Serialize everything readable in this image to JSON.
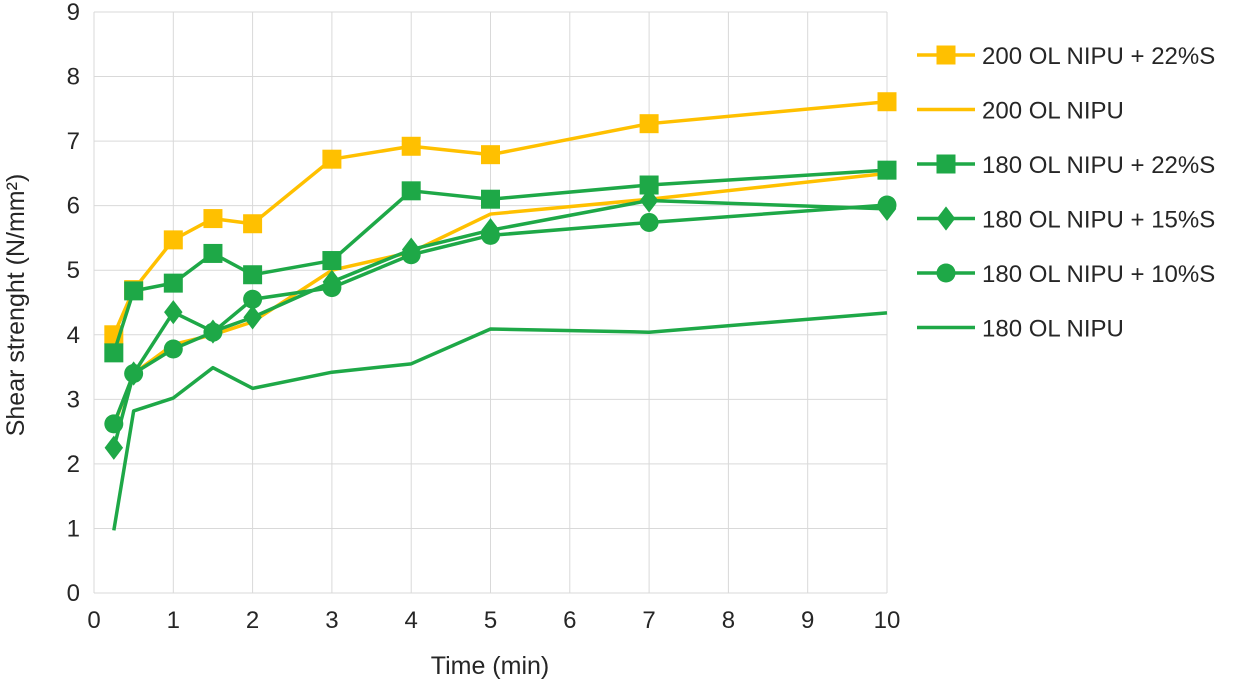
{
  "chart_data": {
    "type": "line",
    "title": "",
    "xlabel": "Time (min)",
    "ylabel": "Shear strenght (N/mm²)",
    "xlim": [
      0,
      10
    ],
    "ylim": [
      0,
      9
    ],
    "xticks": [
      "0",
      "1",
      "2",
      "3",
      "4",
      "5",
      "6",
      "7",
      "8",
      "9",
      "10"
    ],
    "yticks": [
      "0",
      "1",
      "2",
      "3",
      "4",
      "5",
      "6",
      "7",
      "8",
      "9"
    ],
    "grid": "vertical and horizontal",
    "legend_position": "right",
    "x": [
      0.25,
      0.5,
      1,
      1.5,
      2,
      3,
      4,
      5,
      7,
      10
    ],
    "series": [
      {
        "name": "200 OL NIPU + 22%S",
        "color": "#FFC000",
        "marker": "square",
        "values": [
          4.0,
          4.7,
          5.47,
          5.8,
          5.72,
          6.72,
          6.92,
          6.79,
          7.27,
          7.61
        ]
      },
      {
        "name": "200 OL NIPU",
        "color": "#FFC000",
        "marker": "none",
        "values": [
          2.6,
          3.4,
          3.85,
          4.0,
          4.2,
          5.0,
          5.28,
          5.87,
          6.1,
          6.5
        ]
      },
      {
        "name": "180 OL NIPU + 22%S",
        "color": "#1EA847",
        "marker": "square",
        "values": [
          3.72,
          4.68,
          4.8,
          5.26,
          4.93,
          5.15,
          6.23,
          6.1,
          6.32,
          6.55
        ]
      },
      {
        "name": "180 OL NIPU + 15%S",
        "color": "#1EA847",
        "marker": "diamond",
        "values": [
          2.25,
          3.4,
          4.35,
          4.05,
          4.27,
          4.82,
          5.32,
          5.62,
          6.08,
          5.95
        ]
      },
      {
        "name": "180 OL NIPU + 10%S",
        "color": "#1EA847",
        "marker": "circle",
        "values": [
          2.62,
          3.4,
          3.78,
          4.04,
          4.55,
          4.73,
          5.24,
          5.54,
          5.74,
          6.01
        ]
      },
      {
        "name": "180 OL NIPU",
        "color": "#1EA847",
        "marker": "none",
        "values": [
          0.97,
          2.82,
          3.02,
          3.49,
          3.17,
          3.42,
          3.55,
          4.09,
          4.04,
          4.34
        ]
      }
    ]
  }
}
